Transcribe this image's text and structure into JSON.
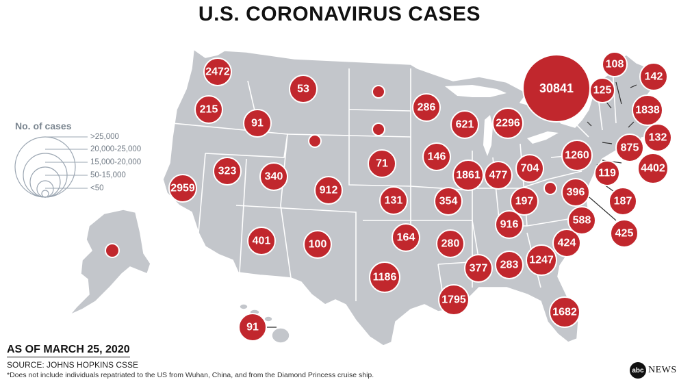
{
  "title": "U.S. CORONAVIRUS CASES",
  "legend": {
    "title": "No. of cases",
    "ranges": [
      ">25,000",
      "20,000-25,000",
      "15,000-20,000",
      "50-15,000",
      "<50"
    ]
  },
  "bubbles": [
    {
      "state": "WA",
      "label": "2472"
    },
    {
      "state": "OR",
      "label": "215"
    },
    {
      "state": "CA",
      "label": "2959"
    },
    {
      "state": "ID",
      "label": "91"
    },
    {
      "state": "MT",
      "label": "53"
    },
    {
      "state": "NV",
      "label": "323"
    },
    {
      "state": "UT",
      "label": "340"
    },
    {
      "state": "AZ",
      "label": "401"
    },
    {
      "state": "WY",
      "label": ""
    },
    {
      "state": "CO",
      "label": "912"
    },
    {
      "state": "NM",
      "label": "100"
    },
    {
      "state": "ND",
      "label": ""
    },
    {
      "state": "SD",
      "label": ""
    },
    {
      "state": "NE",
      "label": "71"
    },
    {
      "state": "KS",
      "label": "131"
    },
    {
      "state": "OK",
      "label": "164"
    },
    {
      "state": "TX",
      "label": "1186"
    },
    {
      "state": "MN",
      "label": "286"
    },
    {
      "state": "IA",
      "label": "146"
    },
    {
      "state": "MO",
      "label": "354"
    },
    {
      "state": "AR",
      "label": "280"
    },
    {
      "state": "LA",
      "label": "1795"
    },
    {
      "state": "WI",
      "label": "621"
    },
    {
      "state": "IL",
      "label": "1861"
    },
    {
      "state": "MI",
      "label": "2296"
    },
    {
      "state": "IN",
      "label": "477"
    },
    {
      "state": "OH",
      "label": "704"
    },
    {
      "state": "KY",
      "label": "197"
    },
    {
      "state": "TN",
      "label": "916"
    },
    {
      "state": "MS",
      "label": "377"
    },
    {
      "state": "AL",
      "label": "283"
    },
    {
      "state": "GA",
      "label": "1247"
    },
    {
      "state": "FL",
      "label": "1682"
    },
    {
      "state": "SC",
      "label": "424"
    },
    {
      "state": "NC",
      "label": "588"
    },
    {
      "state": "VA",
      "label": "396"
    },
    {
      "state": "WV",
      "label": ""
    },
    {
      "state": "PA",
      "label": "1260"
    },
    {
      "state": "NY",
      "label": "30841"
    },
    {
      "state": "VT",
      "label": "125"
    },
    {
      "state": "NH",
      "label": "108"
    },
    {
      "state": "ME",
      "label": "142"
    },
    {
      "state": "MA",
      "label": "1838"
    },
    {
      "state": "RI",
      "label": "132"
    },
    {
      "state": "CT",
      "label": "875"
    },
    {
      "state": "NJ",
      "label": "4402"
    },
    {
      "state": "DE",
      "label": "119"
    },
    {
      "state": "MD",
      "label": "187"
    },
    {
      "state": "DC",
      "label": "425"
    },
    {
      "state": "AK",
      "label": ""
    },
    {
      "state": "HI",
      "label": "91"
    }
  ],
  "as_of": "AS OF MARCH 25, 2020",
  "source": "SOURCE: JOHNS HOPKINS CSSE",
  "footnote": "*Does not include individuals repatriated to the US from Wuhan, China, and from the Diamond Princess cruise ship.",
  "logo": {
    "mark": "abc",
    "word": "NEWS"
  },
  "colors": {
    "bubble": "#c1272d",
    "land": "#c3c6cb",
    "legend": "#9aa5b1"
  }
}
